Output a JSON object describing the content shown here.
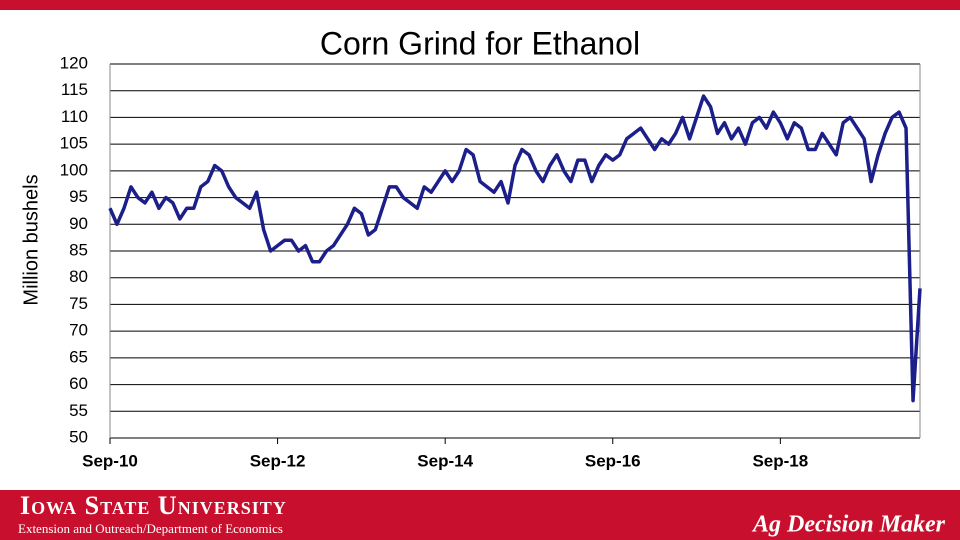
{
  "chart_data": {
    "type": "line",
    "title": "Corn Grind for Ethanol",
    "y_label": "Million bushels",
    "categories": [
      "Sep-10",
      null,
      null,
      null,
      null,
      null,
      null,
      null,
      null,
      null,
      null,
      null,
      null,
      null,
      null,
      null,
      null,
      null,
      null,
      null,
      null,
      null,
      null,
      null,
      "Sep-12",
      null,
      null,
      null,
      null,
      null,
      null,
      null,
      null,
      null,
      null,
      null,
      null,
      null,
      null,
      null,
      null,
      null,
      null,
      null,
      null,
      null,
      null,
      null,
      "Sep-14",
      null,
      null,
      null,
      null,
      null,
      null,
      null,
      null,
      null,
      null,
      null,
      null,
      null,
      null,
      null,
      null,
      null,
      null,
      null,
      null,
      null,
      null,
      null,
      "Sep-16",
      null,
      null,
      null,
      null,
      null,
      null,
      null,
      null,
      null,
      null,
      null,
      null,
      null,
      null,
      null,
      null,
      null,
      null,
      null,
      null,
      null,
      null,
      null,
      "Sep-18",
      null,
      null,
      null,
      null,
      null,
      null,
      null,
      null,
      null,
      null,
      null,
      null,
      null,
      null,
      null,
      null,
      null,
      null,
      null,
      null
    ],
    "values": [
      93,
      90,
      93,
      97,
      95,
      94,
      96,
      93,
      95,
      94,
      91,
      93,
      93,
      97,
      98,
      101,
      100,
      97,
      95,
      94,
      93,
      96,
      89,
      85,
      86,
      87,
      87,
      85,
      86,
      83,
      83,
      85,
      86,
      88,
      90,
      93,
      92,
      88,
      89,
      93,
      97,
      97,
      95,
      94,
      93,
      97,
      96,
      98,
      100,
      98,
      100,
      104,
      103,
      98,
      97,
      96,
      98,
      94,
      101,
      104,
      103,
      100,
      98,
      101,
      103,
      100,
      98,
      102,
      102,
      98,
      101,
      103,
      102,
      103,
      106,
      107,
      108,
      106,
      104,
      106,
      105,
      107,
      110,
      106,
      110,
      114,
      112,
      107,
      109,
      106,
      108,
      105,
      109,
      110,
      108,
      111,
      109,
      106,
      109,
      108,
      104,
      104,
      107,
      105,
      103,
      109,
      110,
      108,
      106,
      98,
      103,
      107,
      110,
      111,
      108,
      57,
      78
    ],
    "color": "#1c1f8a",
    "ylim": [
      50,
      120
    ],
    "yticks": [
      50,
      55,
      60,
      65,
      70,
      75,
      80,
      85,
      90,
      95,
      100,
      105,
      110,
      115,
      120
    ],
    "grid": true
  },
  "footer": {
    "university": "Iowa State University",
    "department": "Extension and Outreach/Department of Economics",
    "brand": "Ag Decision Maker"
  }
}
